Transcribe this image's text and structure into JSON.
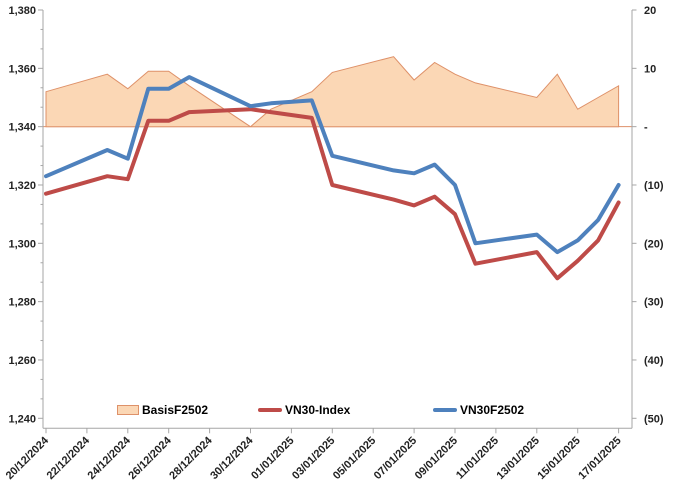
{
  "chart_data": {
    "type": "combo-area-line",
    "title": "",
    "x_axis": {
      "type": "date",
      "ticks": [
        {
          "d": 0,
          "label": "20/12/2024"
        },
        {
          "d": 2,
          "label": "22/12/2024"
        },
        {
          "d": 4,
          "label": "24/12/2024"
        },
        {
          "d": 6,
          "label": "26/12/2024"
        },
        {
          "d": 8,
          "label": "28/12/2024"
        },
        {
          "d": 10,
          "label": "30/12/2024"
        },
        {
          "d": 12,
          "label": "01/01/2025"
        },
        {
          "d": 14,
          "label": "03/01/2025"
        },
        {
          "d": 16,
          "label": "05/01/2025"
        },
        {
          "d": 18,
          "label": "07/01/2025"
        },
        {
          "d": 20,
          "label": "09/01/2025"
        },
        {
          "d": 22,
          "label": "11/01/2025"
        },
        {
          "d": 24,
          "label": "13/01/2025"
        },
        {
          "d": 26,
          "label": "15/01/2025"
        },
        {
          "d": 28,
          "label": "17/01/2025"
        }
      ]
    },
    "left_axis": {
      "min": 1240,
      "max": 1380,
      "major_step": 20,
      "ticks": [
        {
          "v": 1380,
          "label": "1,380"
        },
        {
          "v": 1360,
          "label": "1,360"
        },
        {
          "v": 1340,
          "label": "1,340"
        },
        {
          "v": 1320,
          "label": "1,320"
        },
        {
          "v": 1300,
          "label": "1,300"
        },
        {
          "v": 1280,
          "label": "1,280"
        },
        {
          "v": 1260,
          "label": "1,260"
        },
        {
          "v": 1240,
          "label": "1,240"
        }
      ]
    },
    "right_axis": {
      "min": -50,
      "max": 20,
      "major_step": 10,
      "ticks": [
        {
          "v": 20,
          "label": "20"
        },
        {
          "v": 10,
          "label": "10"
        },
        {
          "v": 0,
          "label": "-"
        },
        {
          "v": -10,
          "label": "(10)"
        },
        {
          "v": -20,
          "label": "(20)"
        },
        {
          "v": -30,
          "label": "(30)"
        },
        {
          "v": -40,
          "label": "(40)"
        },
        {
          "v": -50,
          "label": "(50)"
        }
      ]
    },
    "axis_color": "#A6A6A6",
    "baseline_value_left": 1340,
    "points": {
      "dates": [
        "20/12/2024",
        "23/12/2024",
        "24/12/2024",
        "25/12/2024",
        "26/12/2024",
        "27/12/2024",
        "30/12/2024",
        "31/12/2024",
        "02/01/2025",
        "03/01/2025",
        "06/01/2025",
        "07/01/2025",
        "08/01/2025",
        "09/01/2025",
        "10/01/2025",
        "13/01/2025",
        "14/01/2025",
        "15/01/2025",
        "16/01/2025",
        "17/01/2025"
      ],
      "day_offsets": [
        0,
        3,
        4,
        5,
        6,
        7,
        10,
        11,
        13,
        14,
        17,
        18,
        19,
        20,
        21,
        24,
        25,
        26,
        27,
        28
      ]
    },
    "series": [
      {
        "name": "BasisF2502",
        "type": "area",
        "axis": "right",
        "fill": "#FBD7B5",
        "stroke": "#DE9169",
        "values": [
          6,
          9,
          6.5,
          9.5,
          9.5,
          7,
          0,
          3,
          6,
          9.3,
          12,
          8,
          11,
          9,
          7.5,
          5,
          9,
          3,
          5,
          7
        ]
      },
      {
        "name": "VN30-Index",
        "type": "line",
        "axis": "left",
        "stroke": "#BE4B48",
        "values": [
          1317,
          1323,
          1322,
          1342,
          1342,
          1345,
          1346,
          1345,
          1343,
          1320,
          1315,
          1313,
          1316,
          1310,
          1293,
          1297,
          1288,
          1294,
          1301,
          1314
        ]
      },
      {
        "name": "VN30F2502",
        "type": "line",
        "axis": "left",
        "stroke": "#4E81BD",
        "values": [
          1323,
          1332,
          1329,
          1353,
          1353,
          1357,
          1347,
          1348,
          1349,
          1330,
          1325,
          1324,
          1327,
          1320,
          1300,
          1303,
          1297,
          1301,
          1308,
          1320
        ]
      }
    ],
    "legend_position": "bottom"
  }
}
